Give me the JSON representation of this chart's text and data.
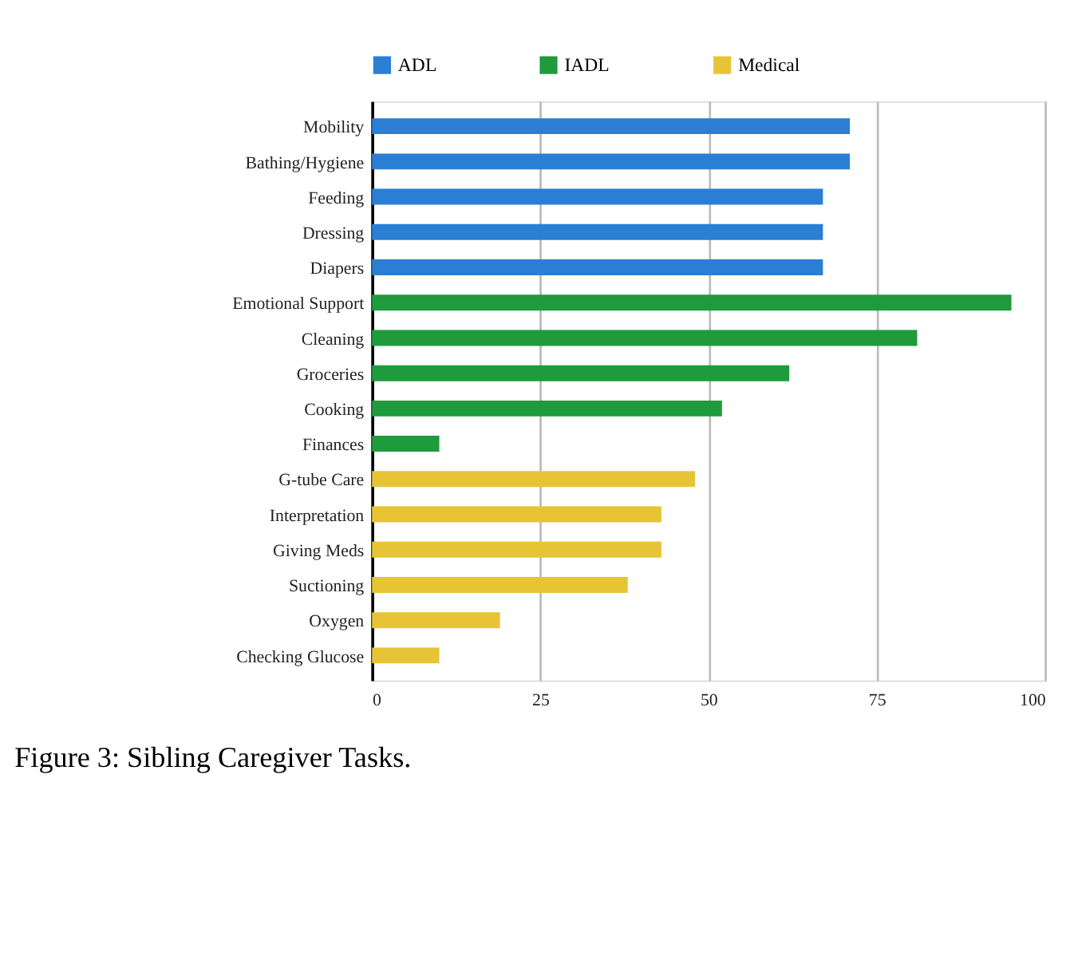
{
  "chart_data": {
    "type": "bar",
    "orientation": "horizontal",
    "title": "Figure 3: Sibling Caregiver Tasks.",
    "categories": [
      "Mobility",
      "Bathing/Hygiene",
      "Feeding",
      "Dressing",
      "Diapers",
      "Emotional Support",
      "Cleaning",
      "Groceries",
      "Cooking",
      "Finances",
      "G-tube Care",
      "Interpretation",
      "Giving Meds",
      "Suctioning",
      "Oxygen",
      "Checking Glucose"
    ],
    "series": [
      {
        "name": "ADL",
        "color": "#2a7fd4",
        "values": [
          71,
          71,
          67,
          67,
          67,
          null,
          null,
          null,
          null,
          null,
          null,
          null,
          null,
          null,
          null,
          null
        ]
      },
      {
        "name": "IADL",
        "color": "#1f9a3c",
        "values": [
          null,
          null,
          null,
          null,
          null,
          95,
          81,
          62,
          52,
          10,
          null,
          null,
          null,
          null,
          null,
          null
        ]
      },
      {
        "name": "Medical",
        "color": "#e6c435",
        "values": [
          null,
          null,
          null,
          null,
          null,
          null,
          null,
          null,
          null,
          null,
          48,
          43,
          43,
          38,
          19,
          10
        ]
      }
    ],
    "xlim": [
      0,
      100
    ],
    "xticks": [
      0,
      25,
      50,
      75,
      100
    ],
    "grid": "x",
    "legend": "top"
  }
}
